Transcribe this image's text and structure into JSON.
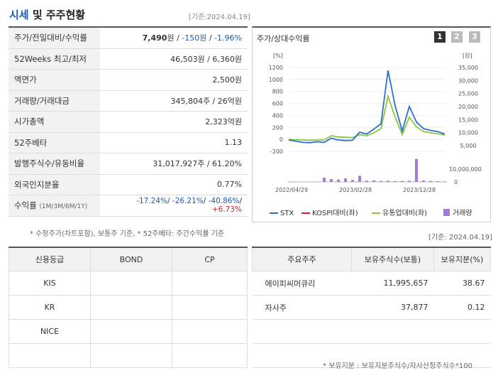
{
  "header": {
    "title_main": "시세",
    "title_rest": " 및 주주현황",
    "base_date": "[기준:2024.04.19]"
  },
  "quote_rows": [
    {
      "label": "주가/전일대비/수익률"
    },
    {
      "label": "52Weeks 최고/최저",
      "value": "46,503원 / 6,360원"
    },
    {
      "label": "액면가",
      "value": "2,500원"
    },
    {
      "label": "거래량/거래대금",
      "value": "345,804주 / 26억원"
    },
    {
      "label": "시가총액",
      "value": "2,323억원"
    },
    {
      "label": "52주베타",
      "value": "1.13"
    },
    {
      "label": "발행주식수/유동비율",
      "value": "31,017,927주 / 61.20%"
    },
    {
      "label": "외국인지분율",
      "value": "0.77%"
    },
    {
      "label": "수익률",
      "sublabel": "(1M/3M/6M/1Y)"
    }
  ],
  "price": {
    "current": "7,490",
    "unit": "원",
    "change": "-150원",
    "rate": "-1.96%",
    "sep": " / "
  },
  "returns": {
    "m1": "-17.24%",
    "m3": "-26.21%",
    "m6": "-40.86%",
    "y1": "+6.73%",
    "sep": "/ "
  },
  "notes": {
    "left": "* 수정주가(차트포함), 보통주 기준, * 52주베타: 주간수익률 기준",
    "right_date": "[기준: 2024.04.19]",
    "share_note": "* 보유지분 : 보유지분주식수/자사산정주식수*100"
  },
  "chart": {
    "title": "주가/상대수익률",
    "pages": [
      "1",
      "2",
      "3"
    ],
    "left_unit": "[%]",
    "right_unit": "[원]",
    "left_ticks": [
      "1200",
      "1000",
      "800",
      "600",
      "400",
      "200",
      "0",
      "-200"
    ],
    "right_ticks": [
      "35,000",
      "30,000",
      "25,000",
      "20,000",
      "15,000",
      "10,000",
      "5,000"
    ],
    "volume_tick": "10,000,000",
    "volume_zero": "0",
    "x_labels": [
      "2022/04/29",
      "2023/02/28",
      "2023/12/28"
    ],
    "legend": {
      "stx": "STX",
      "kospi": "KOSPI대비(좌)",
      "industry": "유통업대비(좌)",
      "volume": "거래량"
    },
    "colors": {
      "stx": "#2b6fd0",
      "kospi": "#d12121",
      "industry": "#8cc63f",
      "volume": "#a37ad6"
    }
  },
  "chart_data": {
    "type": "line",
    "y_left_range": [
      -200,
      1200
    ],
    "y_right_range": [
      5000,
      35000
    ],
    "series": [
      {
        "name": "STX",
        "values": [
          -10,
          -30,
          -50,
          -55,
          -40,
          -50,
          20,
          -10,
          -20,
          -15,
          120,
          90,
          170,
          260,
          1150,
          560,
          140,
          550,
          290,
          180,
          150,
          130,
          90
        ]
      },
      {
        "name": "유통업대비(좌)",
        "values": [
          0,
          -5,
          -10,
          -15,
          -12,
          -8,
          60,
          40,
          35,
          30,
          80,
          60,
          110,
          180,
          720,
          370,
          80,
          370,
          210,
          130,
          110,
          95,
          70
        ]
      },
      {
        "name": "거래량",
        "values": [
          0,
          0,
          0,
          0,
          0,
          1.8,
          1.2,
          1.0,
          1.5,
          0.8,
          2.6,
          0.5,
          0.6,
          0.4,
          0.5,
          0.3,
          0.4,
          0.5,
          9.8,
          0.6,
          0.4,
          0.3,
          0.2
        ]
      }
    ]
  },
  "credit": {
    "headers": [
      "신용등급",
      "BOND",
      "CP"
    ],
    "rows": [
      [
        "KIS",
        "",
        ""
      ],
      [
        "KR",
        "",
        ""
      ],
      [
        "NICE",
        "",
        ""
      ],
      [
        "",
        "",
        ""
      ]
    ]
  },
  "holders": {
    "headers": [
      "주요주주",
      "보유주식수(보통)",
      "보유지분(%)"
    ],
    "rows": [
      [
        "에이피씨머큐리",
        "11,995,657",
        "38.67"
      ],
      [
        "자사주",
        "37,877",
        "0.12"
      ]
    ]
  }
}
